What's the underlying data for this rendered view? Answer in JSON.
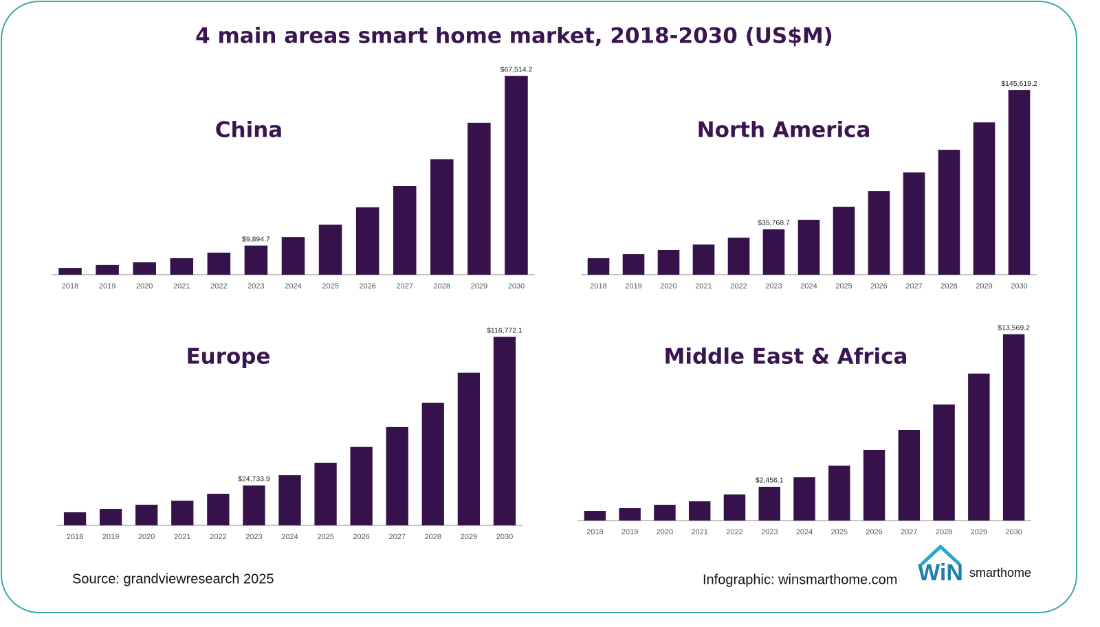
{
  "title": "4 main areas smart home market, 2018-2030 (US$M)",
  "source": "Source: grandviewresearch 2025",
  "credit": "Infographic: winsmarthome.com",
  "logo": {
    "mark": "WiN",
    "text": "smarthome"
  },
  "chart_data": [
    {
      "type": "bar",
      "title": "China",
      "color": "#35134a",
      "categories": [
        "2018",
        "2019",
        "2020",
        "2021",
        "2022",
        "2023",
        "2024",
        "2025",
        "2026",
        "2027",
        "2028",
        "2029",
        "2030"
      ],
      "values": [
        2300,
        3300,
        4200,
        5600,
        7500,
        9894.7,
        12800,
        17000,
        22900,
        30100,
        39200,
        51600,
        67514.2
      ],
      "value_labels": [
        null,
        null,
        null,
        null,
        null,
        "$9,894.7",
        null,
        null,
        null,
        null,
        null,
        null,
        "$67,514.2"
      ],
      "ylim": [
        0,
        70000
      ]
    },
    {
      "type": "bar",
      "title": "North America",
      "color": "#35134a",
      "categories": [
        "2018",
        "2019",
        "2020",
        "2021",
        "2022",
        "2023",
        "2024",
        "2025",
        "2026",
        "2027",
        "2028",
        "2029",
        "2030"
      ],
      "values": [
        13000,
        16200,
        19500,
        23800,
        29200,
        35768.7,
        43300,
        53600,
        66000,
        80600,
        98500,
        120100,
        145619.2
      ],
      "value_labels": [
        null,
        null,
        null,
        null,
        null,
        "$35,768.7",
        null,
        null,
        null,
        null,
        null,
        null,
        "$145,619.2"
      ],
      "ylim": [
        0,
        150000
      ]
    },
    {
      "type": "bar",
      "title": "Europe",
      "color": "#35134a",
      "categories": [
        "2018",
        "2019",
        "2020",
        "2021",
        "2022",
        "2023",
        "2024",
        "2025",
        "2026",
        "2027",
        "2028",
        "2029",
        "2030"
      ],
      "values": [
        8100,
        10200,
        12800,
        15300,
        19600,
        24733.9,
        31100,
        38800,
        48600,
        60900,
        75900,
        94600,
        116772.1
      ],
      "value_labels": [
        null,
        null,
        null,
        null,
        null,
        "$24,733.9",
        null,
        null,
        null,
        null,
        null,
        null,
        "$116,772.1"
      ],
      "ylim": [
        0,
        120000
      ]
    },
    {
      "type": "bar",
      "title": "Middle East & Africa",
      "color": "#35134a",
      "categories": [
        "2018",
        "2019",
        "2020",
        "2021",
        "2022",
        "2023",
        "2024",
        "2025",
        "2026",
        "2027",
        "2028",
        "2029",
        "2030"
      ],
      "values": [
        700,
        900,
        1150,
        1400,
        1900,
        2456.1,
        3150,
        4000,
        5150,
        6600,
        8450,
        10700,
        13569.2
      ],
      "value_labels": [
        null,
        null,
        null,
        null,
        null,
        "$2,456.1",
        null,
        null,
        null,
        null,
        null,
        null,
        "$13,569.2"
      ],
      "ylim": [
        0,
        14000
      ]
    }
  ]
}
